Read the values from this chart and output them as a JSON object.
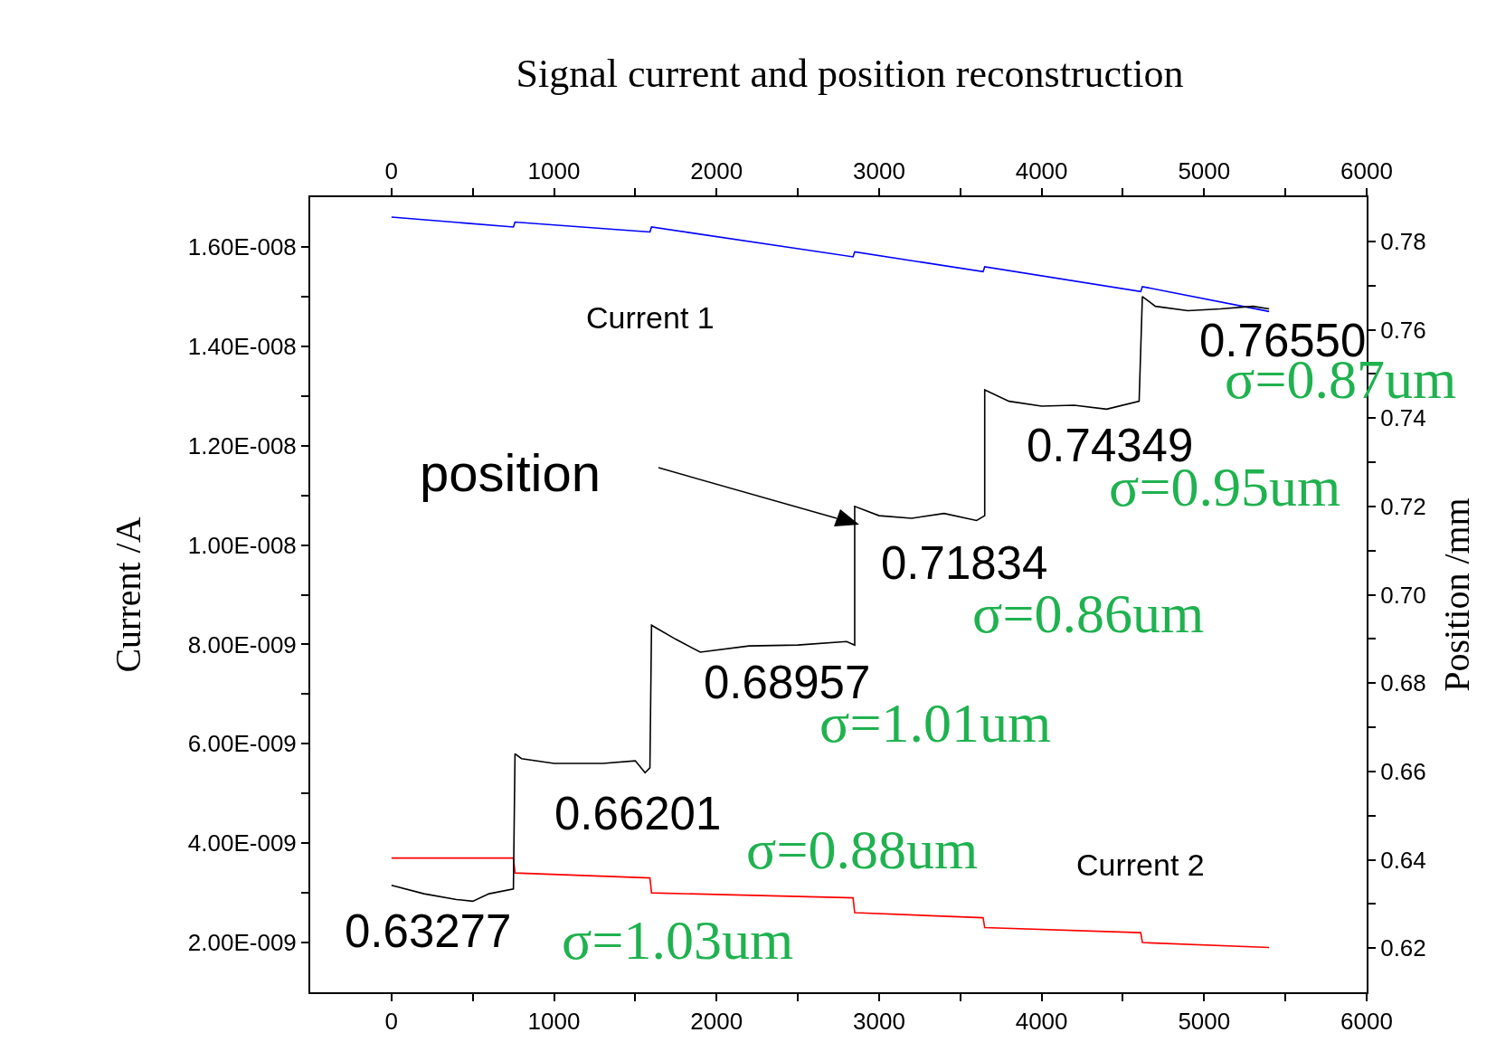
{
  "chart_data": {
    "type": "line",
    "title": "Signal current and position reconstruction",
    "ylabel": "Current /A",
    "y2label": "Position /mm",
    "xlim": [
      -500,
      6000
    ],
    "xticks": [
      0,
      {
        "value": 500,
        "label": null
      },
      1000,
      {
        "value": 1500,
        "label": null
      },
      2000,
      {
        "value": 2500,
        "label": null
      },
      3000,
      {
        "value": 3500,
        "label": null
      },
      4000,
      {
        "value": 4500,
        "label": null
      },
      5000,
      {
        "value": 5500,
        "label": null
      },
      6000
    ],
    "x2lim": [
      -500,
      6000
    ],
    "x2ticks": [
      0,
      {
        "value": 500,
        "label": null
      },
      1000,
      {
        "value": 1500,
        "label": null
      },
      2000,
      {
        "value": 2500,
        "label": null
      },
      3000,
      {
        "value": 3500,
        "label": null
      },
      4000,
      {
        "value": 4500,
        "label": null
      },
      5000,
      {
        "value": 5500,
        "label": null
      },
      6000
    ],
    "ylim": [
      1e-09,
      1.7e-08
    ],
    "yticks": [
      {
        "value": 2e-09,
        "label": "2.00E-009"
      },
      {
        "value": 3e-09,
        "label": null
      },
      {
        "value": 4e-09,
        "label": "4.00E-009"
      },
      {
        "value": 5e-09,
        "label": null
      },
      {
        "value": 6e-09,
        "label": "6.00E-009"
      },
      {
        "value": 7e-09,
        "label": null
      },
      {
        "value": 8e-09,
        "label": "8.00E-009"
      },
      {
        "value": 9e-09,
        "label": null
      },
      {
        "value": 1e-08,
        "label": "1.00E-008"
      },
      {
        "value": 1.1e-08,
        "label": null
      },
      {
        "value": 1.2e-08,
        "label": "1.20E-008"
      },
      {
        "value": 1.3e-08,
        "label": null
      },
      {
        "value": 1.4e-08,
        "label": "1.40E-008"
      },
      {
        "value": 1.5e-08,
        "label": null
      },
      {
        "value": 1.6e-08,
        "label": "1.60E-008"
      }
    ],
    "y2lim": [
      0.61,
      0.79
    ],
    "y2ticks": [
      {
        "value": 0.62,
        "label": "0.62"
      },
      {
        "value": 0.63,
        "label": null
      },
      {
        "value": 0.64,
        "label": "0.64"
      },
      {
        "value": 0.65,
        "label": null
      },
      {
        "value": 0.66,
        "label": "0.66"
      },
      {
        "value": 0.67,
        "label": null
      },
      {
        "value": 0.68,
        "label": "0.68"
      },
      {
        "value": 0.69,
        "label": null
      },
      {
        "value": 0.7,
        "label": "0.70"
      },
      {
        "value": 0.71,
        "label": null
      },
      {
        "value": 0.72,
        "label": "0.72"
      },
      {
        "value": 0.73,
        "label": null
      },
      {
        "value": 0.74,
        "label": "0.74"
      },
      {
        "value": 0.75,
        "label": null
      },
      {
        "value": 0.76,
        "label": "0.76"
      },
      {
        "value": 0.77,
        "label": null
      },
      {
        "value": 0.78,
        "label": "0.78"
      }
    ],
    "grid": false,
    "legend": false,
    "marker": "none",
    "line_style": "solid",
    "series": [
      {
        "name": "Current 1",
        "color": "#0000ff",
        "x": [
          0,
          750,
          760,
          1590,
          1600,
          2840,
          2850,
          3640,
          3650,
          4610,
          4620,
          5400
        ],
        "values": [
          1.66e-08,
          1.64e-08,
          1.65e-08,
          1.63e-08,
          1.64e-08,
          1.58e-08,
          1.59e-08,
          1.55e-08,
          1.56e-08,
          1.51e-08,
          1.52e-08,
          1.47e-08
        ]
      },
      {
        "name": "Current 2",
        "color": "#ff0000",
        "x": [
          0,
          750,
          760,
          1590,
          1600,
          2840,
          2850,
          3640,
          3650,
          4610,
          4620,
          5400
        ],
        "values": [
          3.7e-09,
          3.7e-09,
          3.4e-09,
          3.3e-09,
          3e-09,
          2.9e-09,
          2.6e-09,
          2.5e-09,
          2.3e-09,
          2.2e-09,
          2e-09,
          1.9e-09
        ]
      },
      {
        "color": "#000000",
        "axis": "y2",
        "x": [
          0,
          200,
          400,
          500,
          600,
          750,
          760,
          800,
          1000,
          1300,
          1500,
          1560,
          1590,
          1600,
          1750,
          1900,
          2200,
          2500,
          2800,
          2850,
          2850,
          3000,
          3200,
          3400,
          3600,
          3650,
          3650,
          3800,
          4000,
          4200,
          4400,
          4600,
          4620,
          4700,
          4900,
          5100,
          5300,
          5400
        ],
        "values": [
          0.6342,
          0.6323,
          0.631,
          0.6306,
          0.6323,
          0.6334,
          0.664,
          0.6629,
          0.6618,
          0.6618,
          0.6624,
          0.6597,
          0.6608,
          0.6931,
          0.6899,
          0.687,
          0.6884,
          0.6886,
          0.6894,
          0.6886,
          0.72,
          0.7179,
          0.7173,
          0.7184,
          0.7168,
          0.7179,
          0.7464,
          0.7438,
          0.7427,
          0.7429,
          0.742,
          0.7438,
          0.7675,
          0.7653,
          0.7643,
          0.7647,
          0.7653,
          0.7647
        ]
      }
    ],
    "annotations": [
      "position",
      "0.63277",
      "σ=1.03um",
      "0.66201",
      "σ=0.88um",
      "0.68957",
      "σ=1.01um",
      "0.71834",
      "σ=0.86um",
      "0.74349",
      "σ=0.95um",
      "0.76550",
      "σ=0.87um"
    ]
  }
}
